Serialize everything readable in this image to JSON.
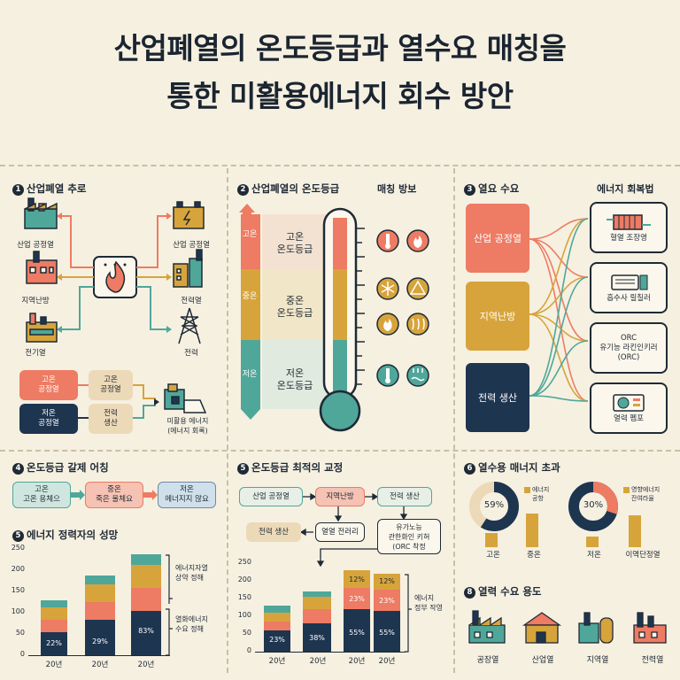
{
  "title": {
    "line1": "산업폐열의 온도등급과 열수요 매칭을",
    "line2": "통한 미활용에너지 회수 방안"
  },
  "colors": {
    "coral": "#ee7b63",
    "mustard": "#d7a43b",
    "teal": "#4fa79a",
    "navy": "#1e3550",
    "cream": "#f6f0e1",
    "beige": "#ecd9b8"
  },
  "s1": {
    "num": "1",
    "title": "산업폐열 추로",
    "left": [
      "산업 공정열",
      "지역난방",
      "전기열"
    ],
    "right": [
      "산업 공정열",
      "전력열",
      "전력"
    ],
    "boxes": {
      "a": "고온\n공정열",
      "b": "고온\n공정열",
      "c": "저온\n공정열",
      "d": "전력\n생산",
      "e": "미활용 에너지\n(에너지 회록)"
    }
  },
  "s2": {
    "num": "2",
    "title": "산업폐열의 온도등급",
    "matching": "매칭 방보",
    "bands": [
      "고온",
      "중온",
      "저온"
    ],
    "grades": [
      "고온\n온도등급",
      "중온\n온도등급",
      "저온\n온도등급"
    ]
  },
  "s3": {
    "num": "3",
    "title": "열요 수요",
    "recovery": "에너지 회복법",
    "demands": [
      "산업 공정열",
      "지역난방",
      "전력 생산"
    ],
    "methods": [
      "혈열 조장영",
      "흡수사 릴칠러",
      "ORC\n유기능 라킨인키러\n(ORC)",
      "열력 펨포"
    ]
  },
  "s4": {
    "num": "4",
    "title": "온도등급 갈제 어칭",
    "boxes": [
      "고온\n고온 용체으",
      "중온\n죽은 울체요",
      "저온\n에너지지 않요"
    ]
  },
  "s5": {
    "num": "5",
    "title": "에너지 정력자의 성망",
    "yticks": [
      "250",
      "200",
      "150",
      "100",
      "50",
      "0"
    ],
    "xlabels": [
      "20년",
      "20년",
      "20년"
    ],
    "bar_pcts": [
      "22%",
      "29%",
      "83%"
    ],
    "notes": [
      "에너지자열\n상약 정해",
      "열화에너지\n수요 정해"
    ]
  },
  "s5b": {
    "num": "5",
    "title": "온도등급 최적의 교정",
    "flow": [
      "산업 공정열",
      "지역난방",
      "전력 생산",
      "전력 생산",
      "열열 전러리",
      "유가노능\n관한화인 키혀\n(ORC 착정"
    ],
    "yticks": [
      "250",
      "200",
      "150",
      "100",
      "50",
      "0"
    ],
    "xlabels": [
      "20년",
      "20년",
      "20년",
      "20년"
    ],
    "bottom_pcts": [
      "23%",
      "38%",
      "55%",
      "55%"
    ],
    "mid_pcts": [
      "23%",
      "23%"
    ],
    "top_pcts": [
      "12%",
      "12%"
    ],
    "note": "에너지\n정부 작영"
  },
  "s6": {
    "num": "6",
    "title": "열수용 매너지 초과",
    "donut1": {
      "pct": "59%",
      "value": 0.59,
      "legend": "에너지\n공항"
    },
    "donut2": {
      "pct": "30%",
      "value": 0.3,
      "legend": "영향에너지\n잔여라율"
    },
    "bars": [
      "고온",
      "중온",
      "저온",
      "이역단정열"
    ]
  },
  "s8": {
    "num": "8",
    "title": "열력 수요 용도",
    "items": [
      "공장열",
      "산업열",
      "지역열",
      "전력열"
    ]
  }
}
